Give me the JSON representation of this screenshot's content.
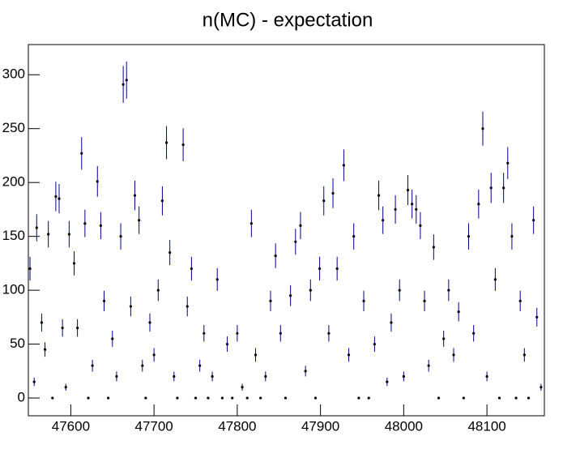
{
  "chart_data": {
    "type": "scatter",
    "title": "n(MC) - expectation",
    "x": [
      47551,
      47556,
      47559,
      47565,
      47569,
      47573,
      47578,
      47582,
      47586,
      47590,
      47594,
      47598,
      47604,
      47608,
      47613,
      47617,
      47621,
      47626,
      47632,
      47636,
      47640,
      47645,
      47650,
      47655,
      47660,
      47663,
      47667,
      47672,
      47677,
      47682,
      47686,
      47690,
      47695,
      47700,
      47705,
      47710,
      47715,
      47719,
      47724,
      47728,
      47735,
      47740,
      47745,
      47750,
      47755,
      47760,
      47765,
      47770,
      47776,
      47782,
      47788,
      47794,
      47800,
      47806,
      47812,
      47817,
      47822,
      47828,
      47834,
      47840,
      47846,
      47852,
      47858,
      47864,
      47870,
      47876,
      47882,
      47888,
      47894,
      47899,
      47904,
      47910,
      47915,
      47920,
      47928,
      47934,
      47940,
      47946,
      47952,
      47958,
      47965,
      47970,
      47975,
      47980,
      47985,
      47990,
      47995,
      48000,
      48005,
      48010,
      48015,
      48020,
      48025,
      48030,
      48036,
      48042,
      48048,
      48054,
      48060,
      48066,
      48072,
      48078,
      48084,
      48090,
      48095,
      48100,
      48105,
      48110,
      48115,
      48120,
      48125,
      48130,
      48135,
      48140,
      48145,
      48150,
      48156,
      48160,
      48165
    ],
    "values": [
      120,
      15,
      158,
      70,
      45,
      152,
      0,
      187,
      185,
      65,
      10,
      152,
      125,
      65,
      227,
      162,
      0,
      30,
      201,
      160,
      90,
      0,
      55,
      20,
      150,
      291,
      295,
      85,
      188,
      165,
      30,
      0,
      70,
      40,
      100,
      183,
      237,
      135,
      20,
      0,
      235,
      85,
      120,
      0,
      30,
      60,
      0,
      20,
      110,
      0,
      50,
      0,
      60,
      10,
      0,
      162,
      40,
      0,
      20,
      90,
      132,
      60,
      0,
      95,
      145,
      160,
      25,
      100,
      0,
      120,
      183,
      60,
      190,
      120,
      216,
      40,
      150,
      0,
      90,
      0,
      50,
      188,
      165,
      15,
      70,
      175,
      100,
      20,
      193,
      180,
      175,
      160,
      90,
      30,
      140,
      0,
      55,
      100,
      40,
      80,
      0,
      150,
      60,
      180,
      250,
      20,
      195,
      110,
      0,
      195,
      218,
      150,
      0,
      90,
      40,
      0,
      165,
      75,
      10
    ],
    "errors": [
      11,
      3.9,
      12.6,
      8.4,
      6.7,
      12.3,
      0,
      13.7,
      13.6,
      8.1,
      3.2,
      12.3,
      11.2,
      8.1,
      15.1,
      12.7,
      0,
      5.5,
      14.2,
      12.6,
      9.5,
      0,
      7.4,
      4.5,
      12.2,
      17.1,
      17.2,
      9.2,
      13.7,
      12.8,
      5.5,
      0,
      8.4,
      6.3,
      10,
      13.5,
      15.4,
      11.6,
      4.5,
      0,
      15.3,
      9.2,
      11,
      0,
      5.5,
      7.7,
      0,
      4.5,
      10.5,
      0,
      7.1,
      0,
      7.7,
      3.2,
      0,
      12.7,
      6.3,
      0,
      4.5,
      9.5,
      11.5,
      7.7,
      0,
      9.7,
      12,
      12.6,
      5,
      10,
      0,
      11,
      13.5,
      7.7,
      13.8,
      11,
      14.7,
      6.3,
      12.2,
      0,
      9.5,
      0,
      7.1,
      13.7,
      12.8,
      3.9,
      8.4,
      13.2,
      10,
      4.5,
      13.9,
      13.4,
      13.2,
      12.6,
      9.5,
      5.5,
      11.8,
      0,
      7.4,
      10,
      6.3,
      8.9,
      0,
      12.2,
      7.7,
      13.4,
      15.8,
      4.5,
      14,
      10.5,
      0,
      14,
      14.8,
      12.2,
      0,
      9.5,
      6.3,
      0,
      12.8,
      8.7,
      3.2
    ],
    "color": "#000000",
    "error_color": "#00008b",
    "xlim": [
      47549,
      48169
    ],
    "ylim": [
      -16.5,
      328
    ],
    "xticks": [
      47600,
      47700,
      47800,
      47900,
      48000,
      48100
    ],
    "yticks": [
      0,
      50,
      100,
      150,
      200,
      250,
      300
    ]
  }
}
